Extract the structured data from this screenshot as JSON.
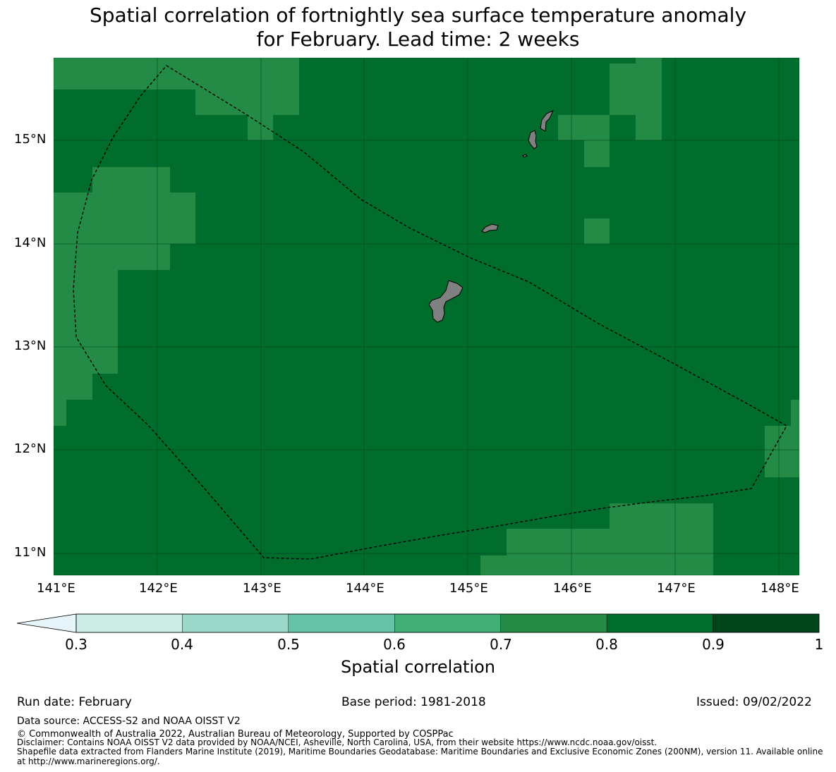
{
  "title": {
    "line1": "Spatial correlation of fortnightly sea surface temperature anomaly",
    "line2": "for February. Lead time: 2 weeks"
  },
  "map": {
    "lon_ticks": [
      "141°E",
      "142°E",
      "143°E",
      "144°E",
      "145°E",
      "146°E",
      "147°E",
      "148°E"
    ],
    "lat_ticks": [
      "15°N",
      "14°N",
      "13°N",
      "12°N",
      "11°N"
    ],
    "colors": {
      "background": "#006d2c",
      "cell_07_08": "#238b45",
      "land": "#808080",
      "gridline": "#00401a"
    }
  },
  "colorbar": {
    "ticks": [
      "0.3",
      "0.4",
      "0.5",
      "0.6",
      "0.7",
      "0.8",
      "0.9",
      "1"
    ],
    "colors": [
      "#ccece6",
      "#99d8c9",
      "#66c2a4",
      "#41ae76",
      "#238b45",
      "#006d2c",
      "#00441b"
    ],
    "under_color": "#e5f5f9",
    "label": "Spatial correlation"
  },
  "footer": {
    "run_date": "Run date: February",
    "base_period": "Base period: 1981-2018",
    "issued": "Issued: 09/02/2022",
    "data_source": "Data source: ACCESS-S2 and NOAA OISST V2",
    "copyright": "© Commonwealth of Australia 2022, Australian Bureau of Meteorology, Supported by COSPPac",
    "disclaimer": "Disclaimer: Contains NOAA OISST V2 data provided by NOAA/NCEI, Asheville, North Carolina, USA, from their website https://www.ncdc.noaa.gov/oisst.",
    "shapefile_1": "Shapefile data extracted from Flanders Marine Institute (2019), Maritime Boundaries Geodatabase: Maritime Boundaries and Exclusive Economic Zones (200NM), version 11. Available online",
    "shapefile_2": "at http://www.marineregions.org/."
  }
}
